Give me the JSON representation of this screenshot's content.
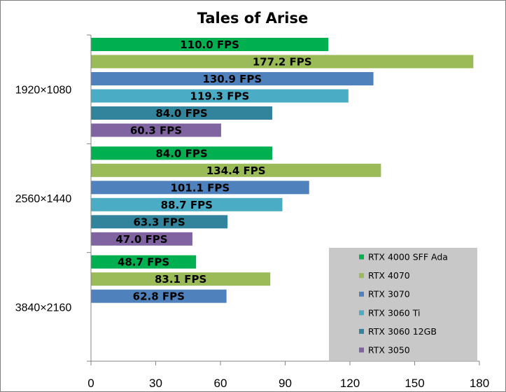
{
  "chart_data": {
    "type": "bar",
    "orientation": "horizontal",
    "title": "Tales of Arise",
    "categories": [
      "1920×1080",
      "2560×1440",
      "3840×2160"
    ],
    "series": [
      {
        "name": "RTX 4000 SFF Ada",
        "color": "#00b050",
        "values": [
          110.0,
          84.0,
          48.7
        ],
        "labels": [
          "110.0 FPS",
          "84.0 FPS",
          "48.7 FPS"
        ]
      },
      {
        "name": "RTX 4070",
        "color": "#9bbb59",
        "values": [
          177.2,
          134.4,
          83.1
        ],
        "labels": [
          "177.2 FPS",
          "134.4 FPS",
          "83.1 FPS"
        ]
      },
      {
        "name": "RTX 3070",
        "color": "#4f81bd",
        "values": [
          130.9,
          101.1,
          62.8
        ],
        "labels": [
          "130.9 FPS",
          "101.1 FPS",
          "62.8 FPS"
        ]
      },
      {
        "name": "RTX 3060 Ti",
        "color": "#4bacc6",
        "values": [
          119.3,
          88.7,
          null
        ],
        "labels": [
          "119.3 FPS",
          "88.7 FPS",
          ""
        ]
      },
      {
        "name": "RTX 3060 12GB",
        "color": "#31849b",
        "values": [
          84.0,
          63.3,
          null
        ],
        "labels": [
          "84.0 FPS",
          "63.3 FPS",
          ""
        ]
      },
      {
        "name": "RTX 3050",
        "color": "#8064a2",
        "values": [
          60.3,
          47.0,
          null
        ],
        "labels": [
          "60.3 FPS",
          "47.0 FPS",
          ""
        ]
      }
    ],
    "xlim": [
      0,
      180
    ],
    "xticks": [
      "0",
      "30",
      "60",
      "90",
      "120",
      "150",
      "180"
    ],
    "grid": false,
    "legend_position": "bottom-right",
    "legend_background": "#c8c8c8"
  }
}
